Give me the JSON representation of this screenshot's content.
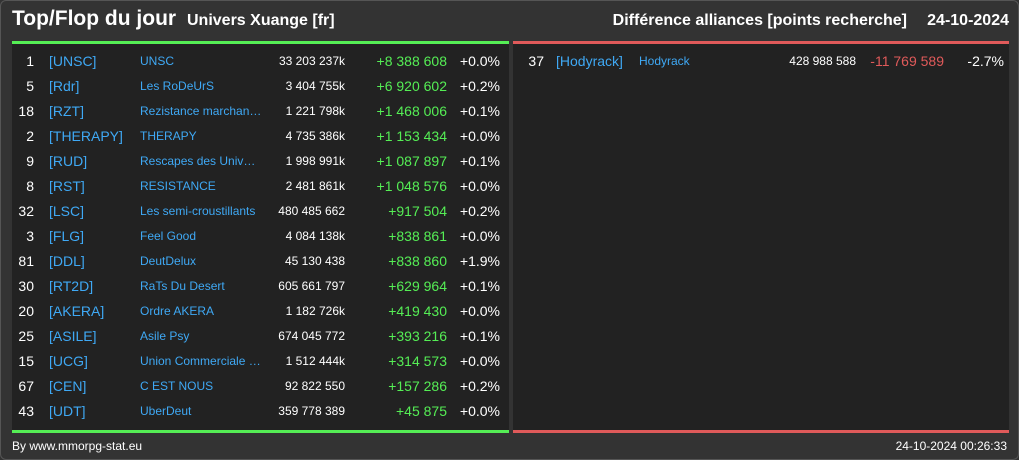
{
  "header": {
    "title": "Top/Flop du jour",
    "universe": "Univers Xuange [fr]",
    "comparison": "Différence alliances [points recherche]",
    "date": "24-10-2024"
  },
  "colors": {
    "positive": "#55ee55",
    "negative": "#e05a5a",
    "link": "#3fa9f5",
    "background": "#333333",
    "panel": "#222222"
  },
  "top": [
    {
      "rank": "1",
      "tag": "[UNSC]",
      "name": "UNSC",
      "points": "33 203 237k",
      "diff": "+8 388 608",
      "pct": "+0.0%"
    },
    {
      "rank": "5",
      "tag": "[Rdr]",
      "name": "Les RoDeUrS",
      "points": "3 404 755k",
      "diff": "+6 920 602",
      "pct": "+0.2%"
    },
    {
      "rank": "18",
      "tag": "[RZT]",
      "name": "Rezistance marchande",
      "points": "1 221 798k",
      "diff": "+1 468 006",
      "pct": "+0.1%"
    },
    {
      "rank": "2",
      "tag": "[THERAPY]",
      "name": "THERAPY",
      "points": "4 735 386k",
      "diff": "+1 153 434",
      "pct": "+0.0%"
    },
    {
      "rank": "9",
      "tag": "[RUD]",
      "name": "Rescapes des Univers Detruits",
      "points": "1 998 991k",
      "diff": "+1 087 897",
      "pct": "+0.1%"
    },
    {
      "rank": "8",
      "tag": "[RST]",
      "name": "RESISTANCE",
      "points": "2 481 861k",
      "diff": "+1 048 576",
      "pct": "+0.0%"
    },
    {
      "rank": "32",
      "tag": "[LSC]",
      "name": "Les semi-croustillants",
      "points": "480 485 662",
      "diff": "+917 504",
      "pct": "+0.2%"
    },
    {
      "rank": "3",
      "tag": "[FLG]",
      "name": "Feel Good",
      "points": "4 084 138k",
      "diff": "+838 861",
      "pct": "+0.0%"
    },
    {
      "rank": "81",
      "tag": "[DDL]",
      "name": "DeutDelux",
      "points": "45 130 438",
      "diff": "+838 860",
      "pct": "+1.9%"
    },
    {
      "rank": "30",
      "tag": "[RT2D]",
      "name": "RaTs Du Desert",
      "points": "605 661 797",
      "diff": "+629 964",
      "pct": "+0.1%"
    },
    {
      "rank": "20",
      "tag": "[AKERA]",
      "name": "Ordre AKERA",
      "points": "1 182 726k",
      "diff": "+419 430",
      "pct": "+0.0%"
    },
    {
      "rank": "25",
      "tag": "[ASILE]",
      "name": "Asile Psy",
      "points": "674 045 772",
      "diff": "+393 216",
      "pct": "+0.1%"
    },
    {
      "rank": "15",
      "tag": "[UCG]",
      "name": "Union Commerciale Galactique",
      "points": "1 512 444k",
      "diff": "+314 573",
      "pct": "+0.0%"
    },
    {
      "rank": "67",
      "tag": "[CEN]",
      "name": "C EST NOUS",
      "points": "92 822 550",
      "diff": "+157 286",
      "pct": "+0.2%"
    },
    {
      "rank": "43",
      "tag": "[UDT]",
      "name": "UberDeut",
      "points": "359 778 389",
      "diff": "+45 875",
      "pct": "+0.0%"
    }
  ],
  "flop": [
    {
      "rank": "37",
      "tag": "[Hodyrack]",
      "name": "Hodyrack",
      "points": "428 988 588",
      "diff": "-11 769 589",
      "pct": "-2.7%"
    }
  ],
  "footer": {
    "credit": "By www.mmorpg-stat.eu",
    "timestamp": "24-10-2024 00:26:33"
  }
}
